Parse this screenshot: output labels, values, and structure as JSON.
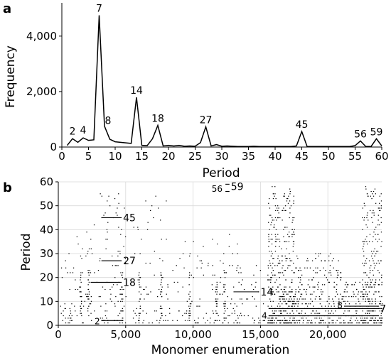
{
  "chart_data": [
    {
      "panel": "a",
      "type": "line",
      "xlabel": "Period",
      "ylabel": "Frequency",
      "xlim": [
        0,
        60
      ],
      "ylim": [
        0,
        5200
      ],
      "xticks": [
        0,
        5,
        10,
        15,
        20,
        25,
        30,
        35,
        40,
        45,
        50,
        55,
        60
      ],
      "xtick_labels": [
        "0",
        "5",
        "10",
        "15",
        "20",
        "25",
        "30",
        "35",
        "40",
        "45",
        "50",
        "55",
        "60"
      ],
      "yticks": [
        0,
        2000,
        4000
      ],
      "ytick_labels": [
        "0",
        "2,000",
        "4,000"
      ],
      "x": [
        1,
        2,
        3,
        4,
        5,
        6,
        7,
        8,
        9,
        10,
        11,
        12,
        13,
        14,
        15,
        16,
        17,
        18,
        19,
        20,
        21,
        22,
        23,
        24,
        25,
        26,
        27,
        28,
        29,
        30,
        31,
        32,
        33,
        34,
        35,
        36,
        37,
        38,
        39,
        40,
        41,
        42,
        43,
        44,
        45,
        46,
        47,
        48,
        49,
        50,
        51,
        52,
        53,
        54,
        55,
        56,
        57,
        58,
        59,
        60
      ],
      "y": [
        60,
        300,
        170,
        330,
        240,
        260,
        4750,
        750,
        280,
        190,
        170,
        150,
        130,
        1790,
        60,
        50,
        300,
        780,
        40,
        60,
        40,
        60,
        30,
        40,
        30,
        160,
        730,
        40,
        90,
        30,
        40,
        30,
        20,
        20,
        20,
        30,
        20,
        20,
        20,
        20,
        20,
        20,
        20,
        40,
        560,
        20,
        20,
        20,
        20,
        20,
        20,
        20,
        20,
        20,
        50,
        220,
        20,
        20,
        300,
        40
      ],
      "annotations": [
        {
          "x": 2,
          "y": 300,
          "text": "2"
        },
        {
          "x": 4,
          "y": 330,
          "text": "4"
        },
        {
          "x": 7,
          "y": 4750,
          "text": "7"
        },
        {
          "x": 8,
          "y": 750,
          "text": "8"
        },
        {
          "x": 14,
          "y": 1790,
          "text": "14"
        },
        {
          "x": 18,
          "y": 780,
          "text": "18"
        },
        {
          "x": 27,
          "y": 730,
          "text": "27"
        },
        {
          "x": 45,
          "y": 560,
          "text": "45"
        },
        {
          "x": 56,
          "y": 220,
          "text": "56"
        },
        {
          "x": 59,
          "y": 300,
          "text": "59"
        }
      ],
      "grid": false
    },
    {
      "panel": "b",
      "type": "scatter",
      "xlabel": "Monomer enumeration",
      "ylabel": "Period",
      "xlim": [
        0,
        24000
      ],
      "ylim": [
        0,
        60
      ],
      "xticks": [
        0,
        5000,
        10000,
        15000,
        20000
      ],
      "xtick_labels": [
        "0",
        "5,000",
        "10,000",
        "15,000",
        "20,000"
      ],
      "yticks": [
        0,
        10,
        20,
        30,
        40,
        50,
        60
      ],
      "ytick_labels": [
        "0",
        "10",
        "20",
        "30",
        "40",
        "50",
        "60"
      ],
      "grid": true,
      "lines": [
        {
          "period": 2,
          "x_start": 3200,
          "x_end": 4700,
          "label": "2"
        },
        {
          "period": 4,
          "x_start": 15600,
          "x_end": 23800,
          "label": "4"
        },
        {
          "period": 7,
          "x_start": 15600,
          "x_end": 23800,
          "label": "7"
        },
        {
          "period": 8,
          "x_start": 21200,
          "x_end": 23800,
          "label": "8"
        },
        {
          "period": 14,
          "x_start": 13000,
          "x_end": 14900,
          "label": "14"
        },
        {
          "period": 18,
          "x_start": 2400,
          "x_end": 4700,
          "label": "18"
        },
        {
          "period": 27,
          "x_start": 3200,
          "x_end": 4700,
          "label": "27"
        },
        {
          "period": 45,
          "x_start": 3200,
          "x_end": 4700,
          "label": "45"
        },
        {
          "period": 56,
          "x_start": 12400,
          "x_end": 12700,
          "label": "56"
        },
        {
          "period": 59,
          "x_start": 12400,
          "x_end": 12700,
          "label": "59"
        }
      ]
    }
  ],
  "panel_a_letter": "a",
  "panel_b_letter": "b"
}
